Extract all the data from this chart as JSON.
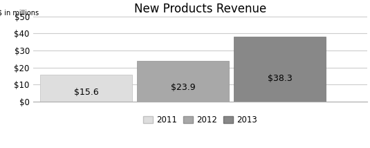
{
  "title": "New Products Revenue",
  "ylabel": "$ in millions",
  "categories": [
    "2011",
    "2012",
    "2013"
  ],
  "values": [
    15.6,
    23.9,
    38.3
  ],
  "bar_colors": [
    "#dedede",
    "#a8a8a8",
    "#888888"
  ],
  "bar_edge_colors": [
    "#c0c0c0",
    "#909090",
    "#707070"
  ],
  "labels": [
    "$15.6",
    "$23.9",
    "$38.3"
  ],
  "ylim": [
    0,
    50
  ],
  "yticks": [
    0,
    10,
    20,
    30,
    40,
    50
  ],
  "ytick_labels": [
    "$0",
    "$10",
    "$20",
    "$30",
    "$40",
    "$50"
  ],
  "title_fontsize": 12,
  "label_fontsize": 7,
  "tick_fontsize": 8.5,
  "bar_label_fontsize": 9,
  "background_color": "#ffffff",
  "grid_color": "#cccccc",
  "bar_width": 0.95,
  "bar_positions": [
    1.0,
    2.0,
    3.0
  ],
  "xlim": [
    0.45,
    3.9
  ]
}
